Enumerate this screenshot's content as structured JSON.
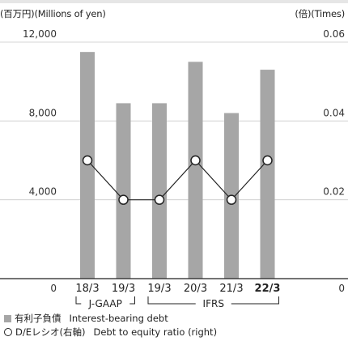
{
  "header": {
    "left_unit": "(百万円)(Millions of yen)",
    "right_unit": "(倍)(Times)"
  },
  "legend": {
    "bars_jp": "有利子負債",
    "bars_en": "Interest-bearing debt",
    "line_jp": "D/Eレシオ(右軸)",
    "line_en": "Debt to equity ratio (right)"
  },
  "periods": [
    {
      "label": "J-GAAP",
      "from": 0,
      "to": 1
    },
    {
      "label": "IFRS",
      "from": 2,
      "to": 5
    }
  ],
  "chart_data": {
    "type": "bar",
    "categories": [
      "18/3",
      "19/3",
      "19/3",
      "20/3",
      "21/3",
      "22/3"
    ],
    "highlight_category_index": 5,
    "series": [
      {
        "name": "Interest-bearing debt",
        "axis": "left",
        "type": "bar",
        "color": "#a6a6a6",
        "values": [
          11500,
          8900,
          8900,
          11000,
          8400,
          10600
        ]
      },
      {
        "name": "Debt to equity ratio",
        "axis": "right",
        "type": "line",
        "color": "#222222",
        "values": [
          0.03,
          0.02,
          0.02,
          0.03,
          0.02,
          0.03
        ]
      }
    ],
    "left_axis": {
      "ylim": [
        0,
        12000
      ],
      "ticks": [
        0,
        4000,
        8000,
        12000
      ],
      "tick_labels": [
        "0",
        "4,000",
        "8,000",
        "12,000"
      ]
    },
    "right_axis": {
      "ylim": [
        0,
        0.06
      ],
      "ticks": [
        0,
        0.02,
        0.04,
        0.06
      ],
      "tick_labels": [
        "0",
        "0.02",
        "0.04",
        "0.06"
      ]
    },
    "grid": true
  }
}
